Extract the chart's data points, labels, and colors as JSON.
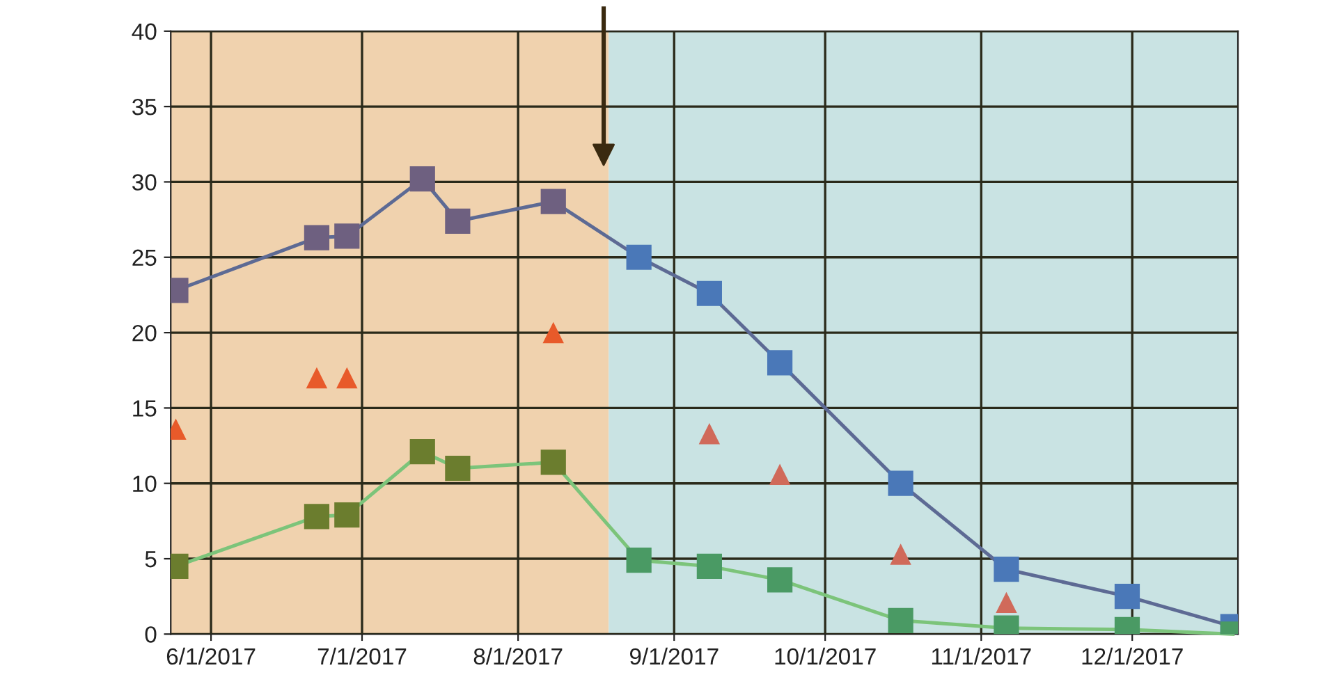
{
  "chart_data": {
    "type": "line",
    "xlim": [
      "2017-05-24",
      "2017-12-22"
    ],
    "xticks": [
      {
        "value": "2017-06-01",
        "label": "6/1/2017"
      },
      {
        "value": "2017-07-01",
        "label": "7/1/2017"
      },
      {
        "value": "2017-08-01",
        "label": "8/1/2017"
      },
      {
        "value": "2017-09-01",
        "label": "9/1/2017"
      },
      {
        "value": "2017-10-01",
        "label": "10/1/2017"
      },
      {
        "value": "2017-11-01",
        "label": "11/1/2017"
      },
      {
        "value": "2017-12-01",
        "label": "12/1/2017"
      }
    ],
    "ylim": [
      0,
      40
    ],
    "yticks": [
      0,
      5,
      10,
      15,
      20,
      25,
      30,
      35,
      40
    ],
    "grid": true,
    "legend": false,
    "bands": [
      {
        "axis": "x",
        "from": "2017-05-24",
        "to": "2017-08-19",
        "color": "#f0d2ae"
      },
      {
        "axis": "x",
        "from": "2017-08-19",
        "to": "2017-12-22",
        "color": "#c9e3e3"
      }
    ],
    "ref_lines": [
      {
        "axis": "x",
        "value": "2017-08-18",
        "color": "#3a2a10"
      }
    ],
    "series": [
      {
        "marker": "square",
        "color": "#5d6a94",
        "colors": [
          "#6e6080",
          "#6e6080",
          "#6e6080",
          "#6e6080",
          "#6e6080",
          "#6e6080",
          "#4a78b8",
          "#4a78b8",
          "#4a78b8",
          "#4a78b8",
          "#4a78b8",
          "#4a78b8",
          "#4a78b8"
        ],
        "x": [
          "2017-05-25",
          "2017-06-22",
          "2017-06-28",
          "2017-07-13",
          "2017-07-20",
          "2017-08-08",
          "2017-08-25",
          "2017-09-08",
          "2017-09-22",
          "2017-10-16",
          "2017-11-06",
          "2017-11-30",
          "2017-12-21"
        ],
        "values": [
          22.8,
          26.3,
          26.4,
          30.2,
          27.4,
          28.7,
          25.0,
          22.6,
          18.0,
          10.0,
          4.3,
          2.5,
          0.5
        ]
      },
      {
        "marker": "square",
        "color": "#7cc47a",
        "colors": [
          "#6b7d2e",
          "#6b7d2e",
          "#6b7d2e",
          "#6b7d2e",
          "#6b7d2e",
          "#6b7d2e",
          "#4a9a64",
          "#4a9a64",
          "#4a9a64",
          "#4a9a64",
          "#4a9a64",
          "#4a9a64",
          "#4a9a64"
        ],
        "x": [
          "2017-05-25",
          "2017-06-22",
          "2017-06-28",
          "2017-07-13",
          "2017-07-20",
          "2017-08-08",
          "2017-08-25",
          "2017-09-08",
          "2017-09-22",
          "2017-10-16",
          "2017-11-06",
          "2017-11-30",
          "2017-12-21"
        ],
        "values": [
          4.5,
          7.8,
          7.9,
          12.1,
          11.0,
          11.4,
          4.9,
          4.5,
          3.6,
          0.9,
          0.4,
          0.3,
          0.0
        ]
      },
      {
        "type": "scatter",
        "marker": "triangle",
        "colors": [
          "#e85a2a",
          "#e85a2a",
          "#e85a2a",
          "#e85a2a",
          "#d06a5a",
          "#d06a5a",
          "#d06a5a",
          "#d06a5a"
        ],
        "x": [
          "2017-05-25",
          "2017-06-22",
          "2017-06-28",
          "2017-08-08",
          "2017-09-08",
          "2017-09-22",
          "2017-10-16",
          "2017-11-06"
        ],
        "values": [
          13.6,
          17.0,
          17.0,
          20.0,
          13.3,
          10.6,
          5.3,
          2.1
        ]
      }
    ]
  }
}
